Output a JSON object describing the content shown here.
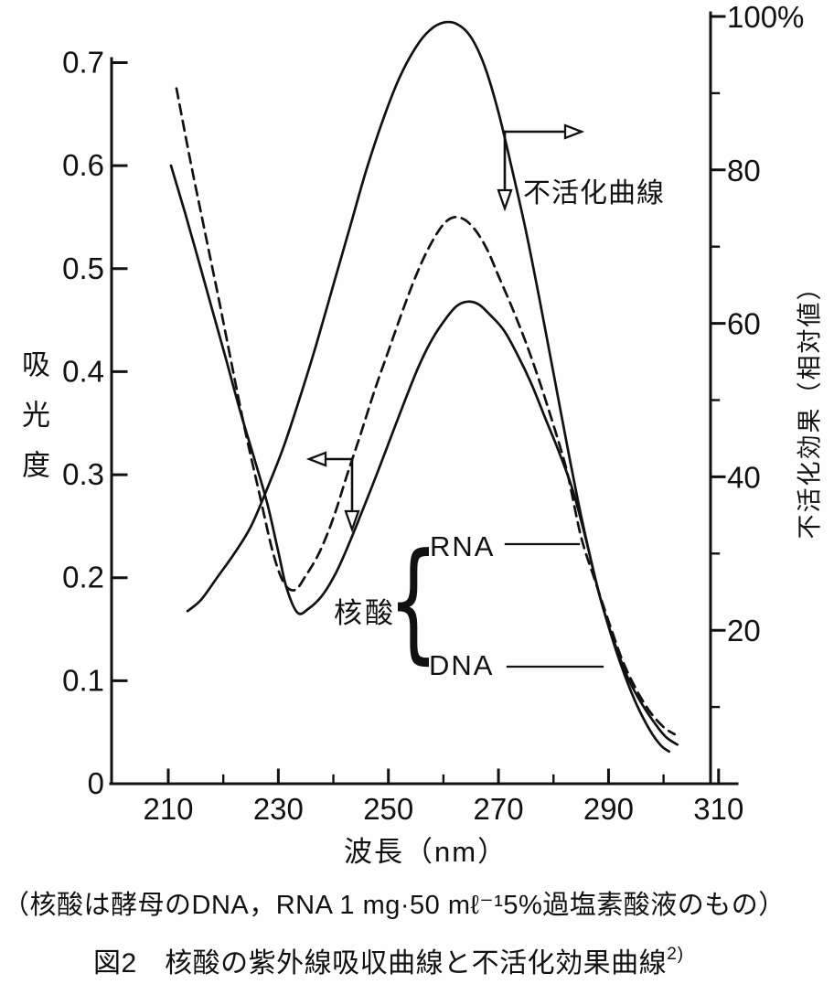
{
  "figure": {
    "note": "（核酸は酵母のDNA，RNA 1 mg·50 mℓ⁻¹5%過塩素酸液のもの）",
    "caption": "図2　核酸の紫外線吸収曲線と不活化効果曲線",
    "caption_ref": "2)"
  },
  "axes": {
    "x_title": "波長（nm）",
    "y_left_title": "吸光度",
    "y_right_title": "不活化効果（相対値）"
  },
  "labels": {
    "inactivation_curve": "不活化曲線",
    "nucleic_acid": "核酸",
    "rna": "RNA",
    "dna": "DNA",
    "brace": "{"
  },
  "colors": {
    "ink": "#111111",
    "background": "#fefefe"
  },
  "chart_data": {
    "type": "line",
    "title": "図2 核酸の紫外線吸収曲線と不活化効果曲線 2)",
    "xlabel": "波長（nm）",
    "ylabel_left": "吸光度",
    "ylabel_right": "不活化効果（相対値）",
    "grid": false,
    "x_axis": {
      "min": 200,
      "max": 313,
      "major_ticks": [
        210,
        230,
        250,
        270,
        290,
        310
      ],
      "minor_ticks": [
        220,
        240,
        260,
        280,
        300
      ],
      "tick_labels": [
        "210",
        "230",
        "250",
        "270",
        "290",
        "310"
      ]
    },
    "y_left_axis": {
      "min": 0,
      "max": 0.72,
      "major_ticks": [
        0.1,
        0.2,
        0.3,
        0.4,
        0.5,
        0.6,
        0.7
      ],
      "tick_labels": [
        "0",
        "0.1",
        "0.2",
        "0.3",
        "0.4",
        "0.5",
        "0.6",
        "0.7"
      ]
    },
    "y_right_axis": {
      "min": 0,
      "max": 102,
      "major_ticks": [
        20,
        40,
        60,
        80,
        100
      ],
      "minor_ticks": [
        10,
        30,
        50,
        70,
        90
      ],
      "tick_labels": [
        "20",
        "40",
        "60",
        "80",
        "100%"
      ]
    },
    "series": [
      {
        "name": "不活化曲線",
        "axis": "right",
        "style": "solid",
        "x": [
          213.5,
          216,
          219,
          222,
          225,
          228,
          231,
          234,
          237,
          240,
          243,
          246,
          249,
          252,
          255,
          257.5,
          260,
          262.5,
          265,
          267.5,
          270,
          272.5,
          275,
          277.5,
          280,
          282.5,
          285,
          287.5,
          290,
          292.5,
          295,
          297.5,
          299.5,
          301
        ],
        "y": [
          22.5,
          24,
          27,
          30,
          33.5,
          38.5,
          44,
          50.5,
          57.5,
          65,
          72.5,
          80,
          86.5,
          92,
          96,
          98.2,
          99.2,
          99,
          97.3,
          93.5,
          87.5,
          80,
          72,
          63,
          53.5,
          44,
          35,
          27,
          20.5,
          15,
          10.5,
          7,
          5,
          4.2
        ]
      },
      {
        "name": "RNA",
        "axis": "left",
        "style": "dashed",
        "x": [
          211.5,
          214,
          216.5,
          219,
          221.5,
          224,
          226.5,
          229,
          231,
          233,
          235,
          237.5,
          240,
          242.5,
          245,
          247.5,
          250,
          252.5,
          255,
          257.5,
          260,
          262,
          264,
          266,
          268,
          270,
          272.5,
          275,
          277.5,
          280,
          282.5,
          285,
          287.5,
          290,
          292.5,
          295,
          297.5,
          300,
          302
        ],
        "y": [
          0.675,
          0.605,
          0.54,
          0.475,
          0.408,
          0.342,
          0.283,
          0.225,
          0.195,
          0.188,
          0.202,
          0.225,
          0.258,
          0.3,
          0.34,
          0.382,
          0.42,
          0.458,
          0.493,
          0.522,
          0.543,
          0.55,
          0.547,
          0.536,
          0.518,
          0.493,
          0.462,
          0.428,
          0.39,
          0.348,
          0.302,
          0.24,
          0.198,
          0.158,
          0.12,
          0.092,
          0.07,
          0.055,
          0.048
        ]
      },
      {
        "name": "DNA",
        "axis": "left",
        "style": "solid",
        "x": [
          210.5,
          213,
          215.5,
          218,
          220.5,
          223,
          225.5,
          228,
          230,
          231.5,
          233.5,
          235.5,
          238,
          240.5,
          243,
          245.5,
          248,
          250.5,
          253,
          255.5,
          258,
          260.5,
          262.5,
          264.5,
          266.5,
          268.5,
          271,
          273.5,
          276,
          278.5,
          281,
          283.5,
          286,
          288.5,
          291,
          293.5,
          296,
          298.5,
          300.5,
          302.5
        ],
        "y": [
          0.6,
          0.555,
          0.508,
          0.46,
          0.412,
          0.363,
          0.318,
          0.272,
          0.225,
          0.19,
          0.166,
          0.17,
          0.183,
          0.205,
          0.235,
          0.268,
          0.302,
          0.337,
          0.372,
          0.405,
          0.432,
          0.452,
          0.464,
          0.468,
          0.465,
          0.455,
          0.44,
          0.416,
          0.388,
          0.355,
          0.322,
          0.285,
          0.235,
          0.18,
          0.138,
          0.103,
          0.078,
          0.058,
          0.045,
          0.038
        ]
      }
    ],
    "annotations": [
      {
        "text": "不活化曲線",
        "meaning": "inactivation curve — read on right axis",
        "arrows": [
          "right",
          "down"
        ]
      },
      {
        "text": "",
        "meaning": "absorbance curves — read on left axis",
        "arrows": [
          "left",
          "down"
        ]
      },
      {
        "text": "核酸 { RNA / DNA",
        "meaning": "nucleic acid group brace pointing to dashed RNA and solid DNA curves"
      }
    ]
  }
}
